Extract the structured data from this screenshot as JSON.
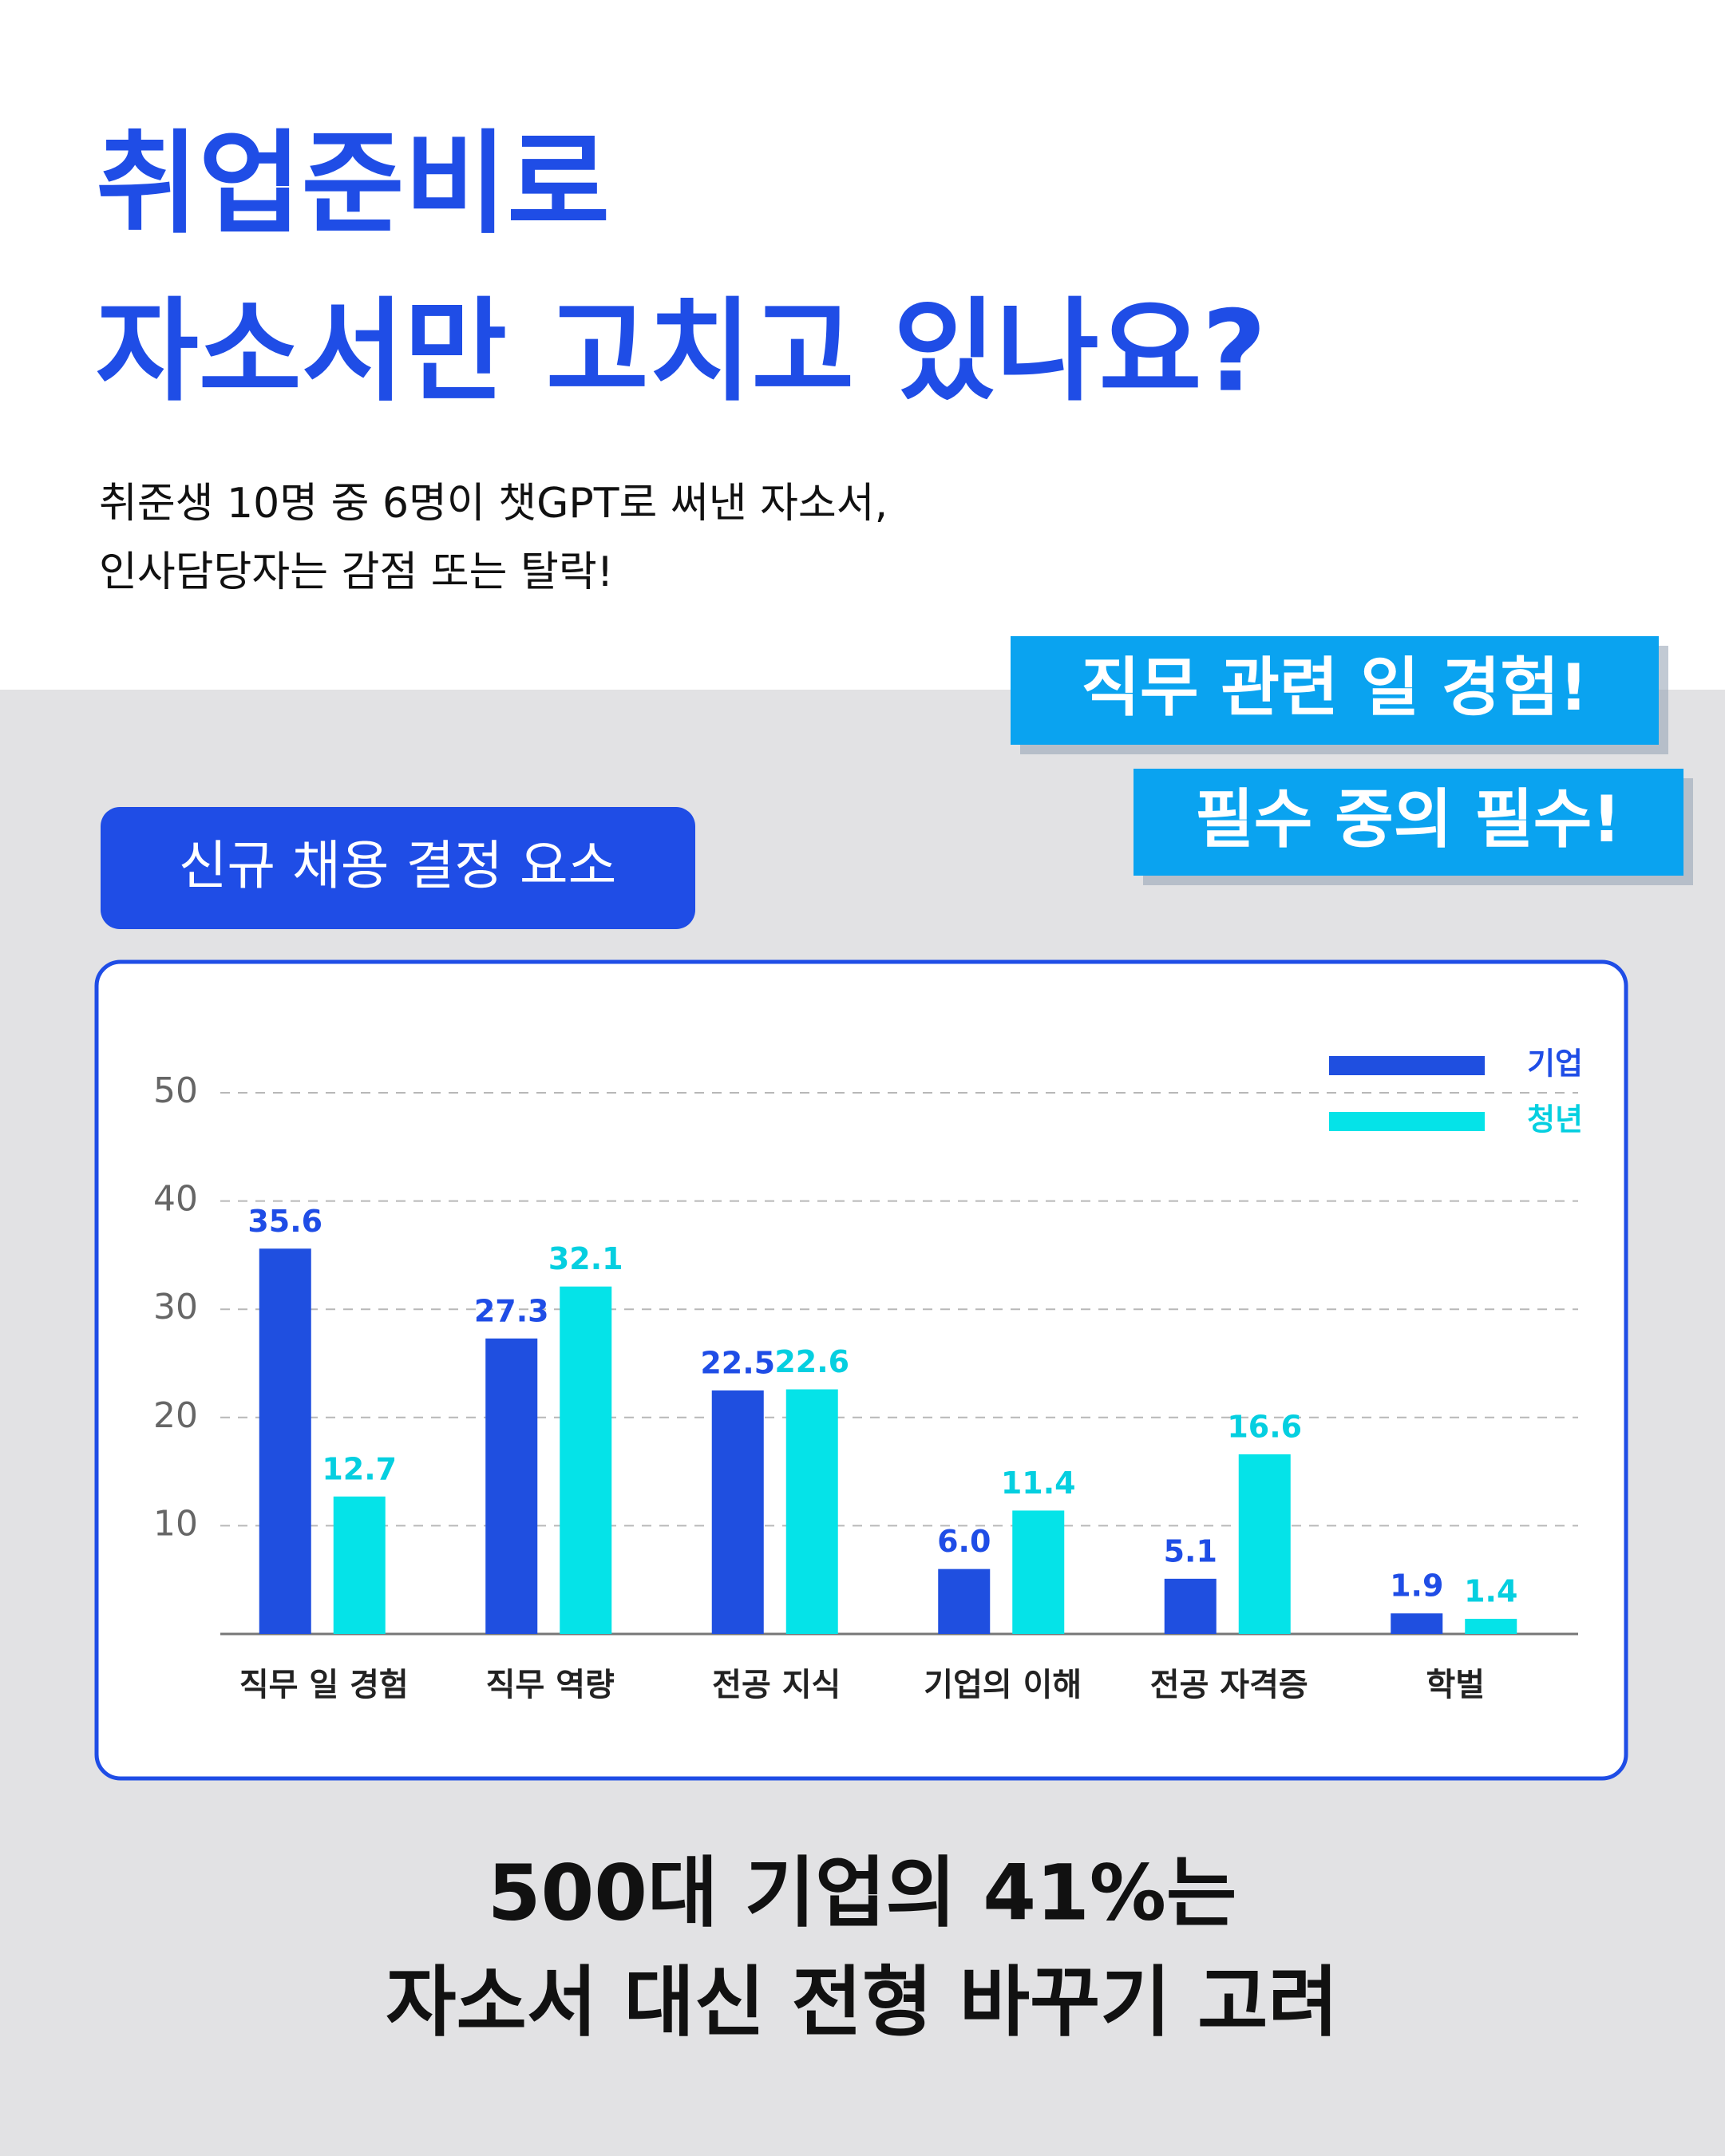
{
  "header": {
    "title_lines": [
      "취업준비로",
      "자소서만 고치고 있나요?"
    ],
    "subtitle_lines": [
      "취준생 10명 중 6명이 챗GPT로 써낸 자소서,",
      "인사담당자는 감점 또는 탈락!"
    ]
  },
  "callouts": [
    "직무 관련 일 경험!",
    "필수 중의 필수!"
  ],
  "chart_data": {
    "type": "bar",
    "title": "신규 채용 결정 요소",
    "categories": [
      "직무 일 경험",
      "직무 역량",
      "전공 지식",
      "기업의 이해",
      "전공 자격증",
      "학벌"
    ],
    "series": [
      {
        "name": "기업",
        "color": "#1f4fe0",
        "values": [
          35.6,
          27.3,
          22.5,
          6.0,
          5.1,
          1.9
        ],
        "value_labels": [
          "35.6",
          "27.3",
          "22.5",
          "6.0",
          "5.1",
          "1.9"
        ]
      },
      {
        "name": "청년",
        "color": "#05e3e8",
        "values": [
          12.7,
          32.1,
          22.6,
          11.4,
          16.6,
          1.4
        ]
      }
    ],
    "ylim": [
      0,
      50
    ],
    "yticks": [
      10,
      20,
      30,
      40,
      50
    ],
    "grid": true,
    "legend": "top-right"
  },
  "footer": {
    "lines": [
      "500대 기업의 41%는",
      "자소서 대신 전형 바꾸기 고려"
    ]
  }
}
